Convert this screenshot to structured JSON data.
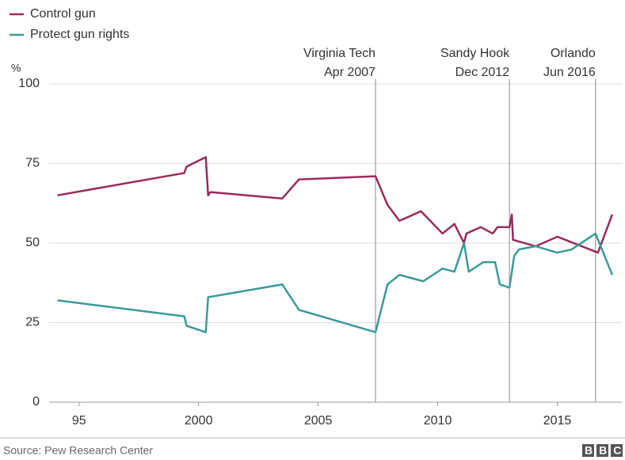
{
  "chart_data": {
    "type": "line",
    "y_label": "%",
    "legend_position": "top-left",
    "grid": true,
    "xlim": [
      1993.75,
      2017.7
    ],
    "xticks": [
      {
        "value": 1995,
        "label": "95"
      },
      2000,
      2005,
      2010,
      2015
    ],
    "ylim": [
      0,
      100
    ],
    "yticks": [
      0,
      25,
      50,
      75,
      100
    ],
    "series": [
      {
        "name": "Control gun",
        "color": "#9b2a5c",
        "x": [
          1994.1,
          1999.4,
          1999.5,
          2000.3,
          2000.4,
          2000.5,
          2003.5,
          2004.2,
          2007.4,
          2007.9,
          2008.4,
          2009.3,
          2010.2,
          2010.7,
          2011.1,
          2011.2,
          2011.8,
          2012.3,
          2012.5,
          2013.0,
          2013.1,
          2013.15,
          2014.1,
          2015.0,
          2016.7,
          2017.3
        ],
        "values": [
          65,
          72,
          74,
          77,
          65,
          66,
          64,
          70,
          71,
          62,
          57,
          60,
          53,
          56,
          50,
          53,
          55,
          53,
          55,
          55,
          59,
          51,
          49,
          52,
          47,
          59
        ]
      },
      {
        "name": "Protect gun rights",
        "color": "#3a9a9a",
        "x": [
          1994.1,
          1999.4,
          1999.5,
          2000.3,
          2000.4,
          2003.5,
          2004.2,
          2007.4,
          2007.9,
          2008.4,
          2009.4,
          2010.2,
          2010.7,
          2011.1,
          2011.3,
          2011.9,
          2012.4,
          2012.6,
          2013.0,
          2013.2,
          2013.4,
          2014.1,
          2015.0,
          2015.6,
          2016.6,
          2017.3
        ],
        "values": [
          32,
          27,
          24,
          22,
          33,
          37,
          29,
          22,
          37,
          40,
          38,
          42,
          41,
          50,
          41,
          44,
          44,
          37,
          36,
          46,
          48,
          49,
          47,
          48,
          53,
          40
        ]
      }
    ],
    "events": [
      {
        "x": 2007.4,
        "label": [
          "Virginia Tech",
          "Apr 2007"
        ]
      },
      {
        "x": 2013.0,
        "label": [
          "Sandy Hook",
          "Dec 2012"
        ]
      },
      {
        "x": 2016.6,
        "label": [
          "Orlando",
          "Jun 2016"
        ]
      }
    ],
    "source": "Source: Pew Research Center",
    "logo": "BBC"
  }
}
